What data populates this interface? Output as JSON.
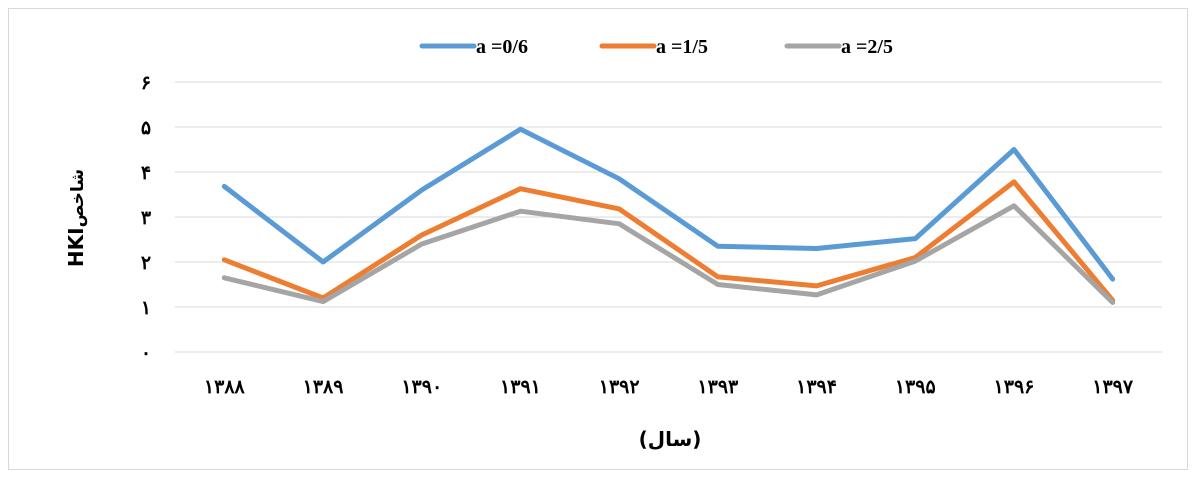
{
  "chart_data": {
    "type": "line",
    "categories": [
      "۱۳۸۸",
      "۱۳۸۹",
      "۱۳۹۰",
      "۱۳۹۱",
      "۱۳۹۲",
      "۱۳۹۳",
      "۱۳۹۴",
      "۱۳۹۵",
      "۱۳۹۶",
      "۱۳۹۷"
    ],
    "y_ticks": [
      "۰",
      "۱",
      "۲",
      "۳",
      "۴",
      "۵",
      "۶"
    ],
    "ylim": [
      0,
      6
    ],
    "grid": true,
    "legend_position": "top",
    "xlabel": "(سال)",
    "ylabel": "شاخص",
    "ylabel_suffix": "HKI",
    "series": [
      {
        "name": "a =0/6",
        "color": "#5b9bd5",
        "values": [
          3.68,
          2.0,
          3.6,
          4.95,
          3.85,
          2.35,
          2.3,
          2.52,
          4.5,
          1.62
        ]
      },
      {
        "name": "a =1/5",
        "color": "#ed7d31",
        "values": [
          2.05,
          1.2,
          2.6,
          3.63,
          3.18,
          1.67,
          1.47,
          2.1,
          3.78,
          1.15
        ]
      },
      {
        "name": "a =2/5",
        "color": "#a5a5a5",
        "values": [
          1.65,
          1.12,
          2.4,
          3.13,
          2.85,
          1.5,
          1.27,
          2.02,
          3.25,
          1.1
        ]
      }
    ]
  }
}
